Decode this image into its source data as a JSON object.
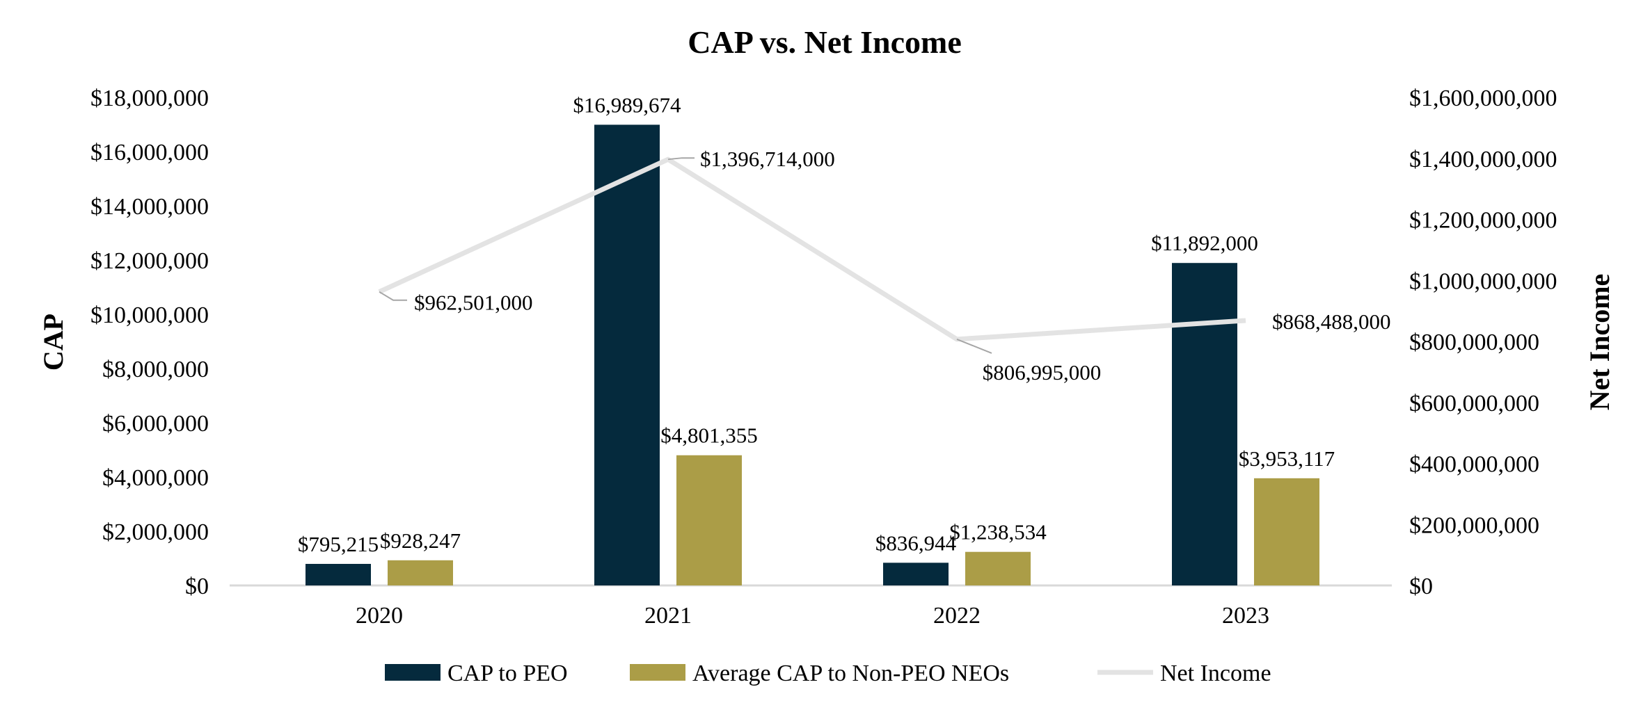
{
  "chart_data": {
    "type": "bar",
    "title": "CAP vs. Net Income",
    "categories": [
      "2020",
      "2021",
      "2022",
      "2023"
    ],
    "ylabel": "CAP",
    "y2label": "Net Income",
    "ylim": [
      0,
      18000000
    ],
    "y2lim": [
      0,
      1600000000
    ],
    "yticks": [
      "$0",
      "$2,000,000",
      "$4,000,000",
      "$6,000,000",
      "$8,000,000",
      "$10,000,000",
      "$12,000,000",
      "$14,000,000",
      "$16,000,000",
      "$18,000,000"
    ],
    "y2ticks": [
      "$0",
      "$200,000,000",
      "$400,000,000",
      "$600,000,000",
      "$800,000,000",
      "$1,000,000,000",
      "$1,200,000,000",
      "$1,400,000,000",
      "$1,600,000,000"
    ],
    "grid": false,
    "legend_position": "bottom",
    "series": [
      {
        "name": "CAP to PEO",
        "type": "bar",
        "axis": "left",
        "color": "#052a3d",
        "values": [
          795215,
          16989674,
          836944,
          11892000
        ],
        "labels": [
          "$795,215",
          "$16,989,674",
          "$836,944",
          "$11,892,000"
        ]
      },
      {
        "name": "Average CAP to Non-PEO NEOs",
        "type": "bar",
        "axis": "left",
        "color": "#ab9d47",
        "values": [
          928247,
          4801355,
          1238534,
          3953117
        ],
        "labels": [
          "$928,247",
          "$4,801,355",
          "$1,238,534",
          "$3,953,117"
        ]
      },
      {
        "name": "Net Income",
        "type": "line",
        "axis": "right",
        "color": "#e3e3e3",
        "values": [
          962501000,
          1396714000,
          806995000,
          868488000
        ],
        "labels": [
          "$962,501,000",
          "$1,396,714,000",
          "$806,995,000",
          "$868,488,000"
        ]
      }
    ]
  }
}
